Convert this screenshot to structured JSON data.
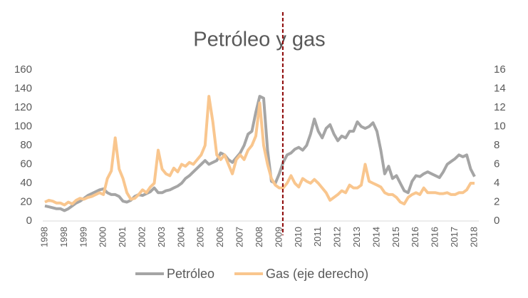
{
  "chart_data": {
    "type": "line",
    "title": "Petróleo y gas",
    "categories": [
      "1998",
      null,
      null,
      null,
      null,
      "1998",
      null,
      null,
      null,
      null,
      "1999",
      null,
      null,
      null,
      null,
      "2000",
      null,
      null,
      null,
      null,
      "2001",
      null,
      null,
      null,
      null,
      "2002",
      null,
      null,
      null,
      null,
      "2003",
      null,
      null,
      null,
      null,
      "2004",
      null,
      null,
      null,
      null,
      "2005",
      null,
      null,
      null,
      null,
      "2006",
      null,
      null,
      null,
      null,
      "2007",
      null,
      null,
      null,
      null,
      "2008",
      null,
      null,
      null,
      null,
      "2009",
      null,
      null,
      null,
      null,
      "2010",
      null,
      null,
      null,
      null,
      "2011",
      null,
      null,
      null,
      null,
      "2012",
      null,
      null,
      null,
      null,
      "2013",
      null,
      null,
      null,
      null,
      "2014",
      null,
      null,
      null,
      null,
      "2015",
      null,
      null,
      null,
      null,
      "2016",
      null,
      null,
      null,
      null,
      "2016",
      null,
      null,
      null,
      null,
      "2017",
      null,
      null,
      null,
      null,
      "2018"
    ],
    "series": [
      {
        "name": "Petróleo",
        "color": "#a5a5a5",
        "axis": "y",
        "values": [
          16,
          15,
          14,
          13,
          13,
          11,
          13,
          16,
          19,
          21,
          24,
          27,
          29,
          31,
          33,
          34,
          30,
          28,
          28,
          26,
          21,
          20,
          22,
          26,
          28,
          27,
          29,
          31,
          35,
          30,
          30,
          32,
          33,
          35,
          37,
          40,
          45,
          48,
          52,
          56,
          60,
          64,
          60,
          62,
          64,
          72,
          70,
          65,
          62,
          67,
          72,
          80,
          92,
          95,
          115,
          132,
          130,
          75,
          42,
          40,
          50,
          62,
          70,
          72,
          76,
          78,
          75,
          80,
          92,
          108,
          95,
          88,
          98,
          102,
          92,
          85,
          90,
          88,
          95,
          95,
          105,
          100,
          98,
          100,
          104,
          95,
          75,
          50,
          58,
          45,
          48,
          40,
          32,
          30,
          42,
          48,
          47,
          50,
          52,
          50,
          48,
          46,
          52,
          60,
          63,
          66,
          70,
          68,
          70,
          55,
          47
        ]
      },
      {
        "name": "Gas (eje derecho)",
        "color": "#f9c68e",
        "axis": "y2",
        "values": [
          2.0,
          2.2,
          2.1,
          1.9,
          1.9,
          1.7,
          2.0,
          1.8,
          2.2,
          2.4,
          2.3,
          2.5,
          2.6,
          2.8,
          3.0,
          2.8,
          4.5,
          5.3,
          8.8,
          5.5,
          4.5,
          3.0,
          2.3,
          2.4,
          2.8,
          3.3,
          3.0,
          3.6,
          4.0,
          7.5,
          5.5,
          5.0,
          4.8,
          5.6,
          5.2,
          6.0,
          5.8,
          6.2,
          6.0,
          6.5,
          7.0,
          8.0,
          13.2,
          10.5,
          7.0,
          6.5,
          7.0,
          6.0,
          5.0,
          6.5,
          7.0,
          6.5,
          7.5,
          8.0,
          9.0,
          12.5,
          8.0,
          6.0,
          4.5,
          3.8,
          3.5,
          3.5,
          4.0,
          4.8,
          4.0,
          3.6,
          4.5,
          4.2,
          4.0,
          4.4,
          4.0,
          3.5,
          3.0,
          2.2,
          2.5,
          2.8,
          3.2,
          3.0,
          3.8,
          3.5,
          3.5,
          3.8,
          6.0,
          4.2,
          4.0,
          3.8,
          3.6,
          3.0,
          2.8,
          2.8,
          2.5,
          2.0,
          1.8,
          2.5,
          2.8,
          3.0,
          2.8,
          3.5,
          3.0,
          3.0,
          3.0,
          2.9,
          2.9,
          3.0,
          2.8,
          2.8,
          3.0,
          3.0,
          3.3,
          4.0,
          4.0
        ]
      }
    ],
    "ylim": [
      0,
      160
    ],
    "yticks": [
      0,
      20,
      40,
      60,
      80,
      100,
      120,
      140,
      160
    ],
    "y2lim": [
      0,
      16
    ],
    "y2ticks": [
      0,
      2,
      4,
      6,
      8,
      10,
      12,
      14,
      16
    ],
    "grid": false,
    "legend": "bottom"
  }
}
